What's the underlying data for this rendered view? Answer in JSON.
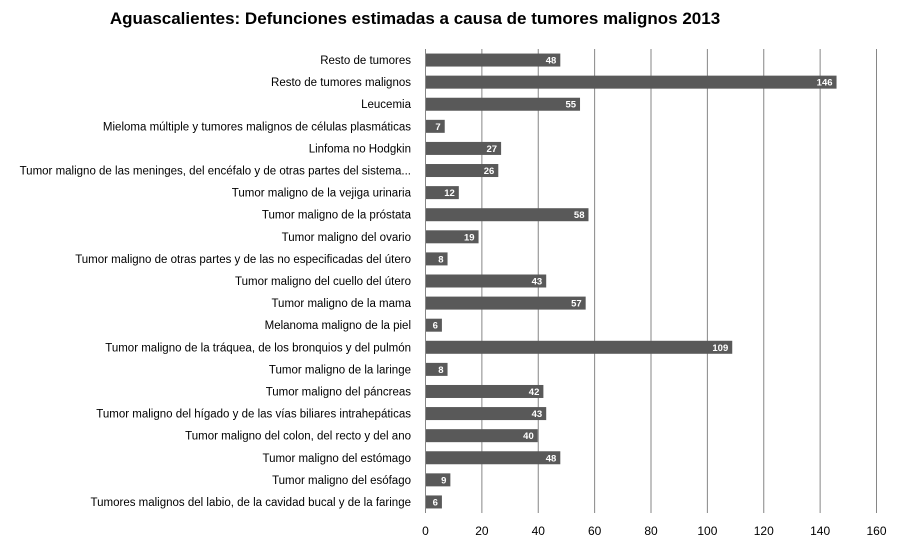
{
  "chart_data": {
    "type": "bar",
    "orientation": "horizontal",
    "title": "Aguascalientes: Defunciones estimadas a causa de tumores malignos 2013",
    "xlabel": "",
    "ylabel": "",
    "xlim": [
      0,
      160
    ],
    "xticks": [
      0,
      20,
      40,
      60,
      80,
      100,
      120,
      140,
      160
    ],
    "grid": true,
    "bar_color": "#595959",
    "categories": [
      "Resto de tumores",
      "Resto de tumores malignos",
      "Leucemia",
      "Mieloma múltiple y tumores malignos de células plasmáticas",
      "Linfoma no Hodgkin",
      "Tumor maligno de las meninges, del encéfalo y de otras partes del sistema...",
      "Tumor maligno de la vejiga urinaria",
      "Tumor maligno de la próstata",
      "Tumor maligno del ovario",
      "Tumor maligno de otras partes y de las no especificadas del útero",
      "Tumor maligno del cuello del útero",
      "Tumor maligno de la mama",
      "Melanoma maligno de la piel",
      "Tumor maligno de la tráquea, de los bronquios y del pulmón",
      "Tumor maligno de la laringe",
      "Tumor maligno del páncreas",
      "Tumor maligno del hígado y de las vías biliares intrahepáticas",
      "Tumor maligno del colon, del recto y del ano",
      "Tumor maligno del estómago",
      "Tumor maligno del esófago",
      "Tumores malignos del labio, de la cavidad bucal y de la faringe"
    ],
    "values": [
      48,
      146,
      55,
      7,
      27,
      26,
      12,
      58,
      19,
      8,
      43,
      57,
      6,
      109,
      8,
      42,
      43,
      40,
      48,
      9,
      6
    ]
  }
}
